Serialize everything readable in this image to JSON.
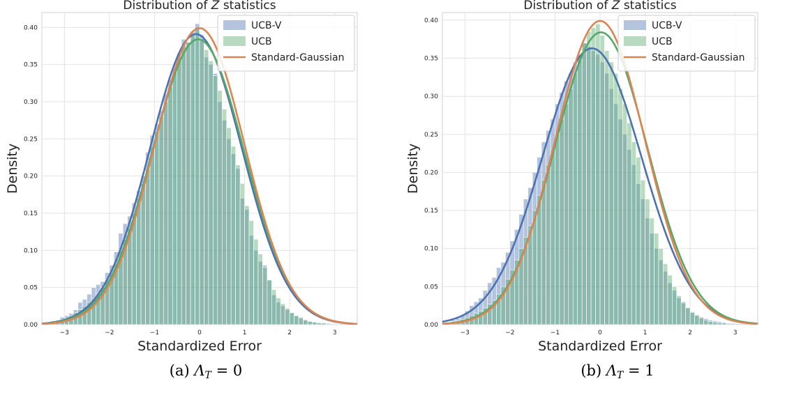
{
  "chart_data": [
    {
      "type": "histogram",
      "title_prefix": "Distribution of ",
      "title_var": "Z",
      "title_suffix": " statistics",
      "xlabel": "Standardized Error",
      "ylabel": "Density",
      "xlim": [
        -3.5,
        3.5
      ],
      "ylim": [
        0,
        0.42
      ],
      "xticks": [
        -3,
        -2,
        -1,
        0,
        1,
        2,
        3
      ],
      "yticks": [
        0.0,
        0.05,
        0.1,
        0.15,
        0.2,
        0.25,
        0.3,
        0.35,
        0.4
      ],
      "grid": true,
      "legend_position": "top-right",
      "caption": {
        "label": "(a) ",
        "symbol": "Λ",
        "subscript": "T",
        "rest": " = 0"
      },
      "bins": {
        "start": -3.3,
        "width": 0.1
      },
      "series": [
        {
          "name": "UCB-V",
          "kind": "histogram+kde",
          "fill": "#4c72b0",
          "line": "#4c72b0",
          "kde": {
            "mean": -0.08,
            "sd": 1.02,
            "peak": 0.391
          },
          "histogram": [
            0.005,
            0.006,
            0.01,
            0.012,
            0.015,
            0.02,
            0.03,
            0.034,
            0.041,
            0.05,
            0.054,
            0.058,
            0.07,
            0.08,
            0.098,
            0.123,
            0.136,
            0.146,
            0.164,
            0.18,
            0.2,
            0.232,
            0.255,
            0.27,
            0.288,
            0.31,
            0.33,
            0.345,
            0.365,
            0.384,
            0.38,
            0.395,
            0.405,
            0.39,
            0.36,
            0.35,
            0.338,
            0.3,
            0.275,
            0.25,
            0.23,
            0.21,
            0.17,
            0.155,
            0.12,
            0.1,
            0.085,
            0.08,
            0.06,
            0.04,
            0.03,
            0.025,
            0.02,
            0.016,
            0.012,
            0.01,
            0.007,
            0.005,
            0.004,
            0.003,
            0.002,
            0.002,
            0.001,
            0.001,
            0.001,
            0.001,
            0.0
          ]
        },
        {
          "name": "UCB",
          "kind": "histogram+kde",
          "fill": "#55a868",
          "line": "#55a868",
          "kde": {
            "mean": -0.03,
            "sd": 1.02,
            "peak": 0.384
          },
          "histogram": [
            0.004,
            0.005,
            0.007,
            0.009,
            0.012,
            0.016,
            0.02,
            0.025,
            0.03,
            0.035,
            0.042,
            0.05,
            0.06,
            0.07,
            0.082,
            0.1,
            0.115,
            0.13,
            0.15,
            0.17,
            0.19,
            0.21,
            0.24,
            0.26,
            0.28,
            0.3,
            0.32,
            0.34,
            0.36,
            0.375,
            0.38,
            0.39,
            0.398,
            0.385,
            0.37,
            0.355,
            0.335,
            0.315,
            0.29,
            0.265,
            0.24,
            0.215,
            0.19,
            0.16,
            0.14,
            0.115,
            0.095,
            0.077,
            0.06,
            0.047,
            0.036,
            0.028,
            0.022,
            0.016,
            0.012,
            0.009,
            0.006,
            0.004,
            0.003,
            0.002,
            0.002,
            0.001,
            0.001,
            0.001,
            0.001,
            0.0,
            0.0
          ]
        },
        {
          "name": "Standard-Gaussian",
          "kind": "line",
          "line": "#dd8452",
          "kde": {
            "mean": 0,
            "sd": 1,
            "peak": 0.399
          }
        }
      ]
    },
    {
      "type": "histogram",
      "title_prefix": "Distribution of ",
      "title_var": "Z",
      "title_suffix": " statistics",
      "xlabel": "Standardized Error",
      "ylabel": "Density",
      "xlim": [
        -3.5,
        3.5
      ],
      "ylim": [
        0,
        0.41
      ],
      "xticks": [
        -3,
        -2,
        -1,
        0,
        1,
        2,
        3
      ],
      "yticks": [
        0.0,
        0.05,
        0.1,
        0.15,
        0.2,
        0.25,
        0.3,
        0.35,
        0.4
      ],
      "grid": true,
      "legend_position": "top-right",
      "caption": {
        "label": "(b) ",
        "symbol": "Λ",
        "subscript": "T",
        "rest": " = 1"
      },
      "bins": {
        "start": -3.3,
        "width": 0.1
      },
      "series": [
        {
          "name": "UCB-V",
          "kind": "histogram+kde",
          "fill": "#4c72b0",
          "line": "#4c72b0",
          "kde": {
            "mean": -0.18,
            "sd": 1.1,
            "peak": 0.363
          },
          "histogram": [
            0.006,
            0.008,
            0.012,
            0.018,
            0.025,
            0.03,
            0.035,
            0.045,
            0.055,
            0.062,
            0.075,
            0.082,
            0.095,
            0.11,
            0.125,
            0.145,
            0.165,
            0.18,
            0.2,
            0.22,
            0.24,
            0.255,
            0.27,
            0.29,
            0.305,
            0.32,
            0.33,
            0.345,
            0.355,
            0.37,
            0.365,
            0.36,
            0.355,
            0.345,
            0.33,
            0.31,
            0.29,
            0.27,
            0.25,
            0.23,
            0.21,
            0.185,
            0.165,
            0.14,
            0.12,
            0.1,
            0.085,
            0.07,
            0.055,
            0.045,
            0.035,
            0.028,
            0.022,
            0.017,
            0.013,
            0.01,
            0.008,
            0.006,
            0.005,
            0.004,
            0.003,
            0.002,
            0.002,
            0.001,
            0.001,
            0.001,
            0.0
          ]
        },
        {
          "name": "UCB",
          "kind": "histogram+kde",
          "fill": "#55a868",
          "line": "#55a868",
          "kde": {
            "mean": 0.02,
            "sd": 1.03,
            "peak": 0.384
          },
          "histogram": [
            0.004,
            0.005,
            0.007,
            0.009,
            0.012,
            0.015,
            0.018,
            0.022,
            0.027,
            0.032,
            0.04,
            0.05,
            0.06,
            0.072,
            0.085,
            0.1,
            0.115,
            0.13,
            0.15,
            0.17,
            0.19,
            0.21,
            0.23,
            0.25,
            0.27,
            0.29,
            0.31,
            0.33,
            0.35,
            0.37,
            0.385,
            0.39,
            0.395,
            0.38,
            0.36,
            0.345,
            0.33,
            0.31,
            0.29,
            0.265,
            0.24,
            0.22,
            0.19,
            0.165,
            0.14,
            0.12,
            0.1,
            0.08,
            0.065,
            0.05,
            0.038,
            0.03,
            0.022,
            0.016,
            0.012,
            0.009,
            0.006,
            0.004,
            0.003,
            0.002,
            0.002,
            0.001,
            0.001,
            0.001,
            0.0,
            0.0,
            0.0
          ]
        },
        {
          "name": "Standard-Gaussian",
          "kind": "line",
          "line": "#dd8452",
          "kde": {
            "mean": 0,
            "sd": 1,
            "peak": 0.399
          }
        }
      ]
    }
  ]
}
